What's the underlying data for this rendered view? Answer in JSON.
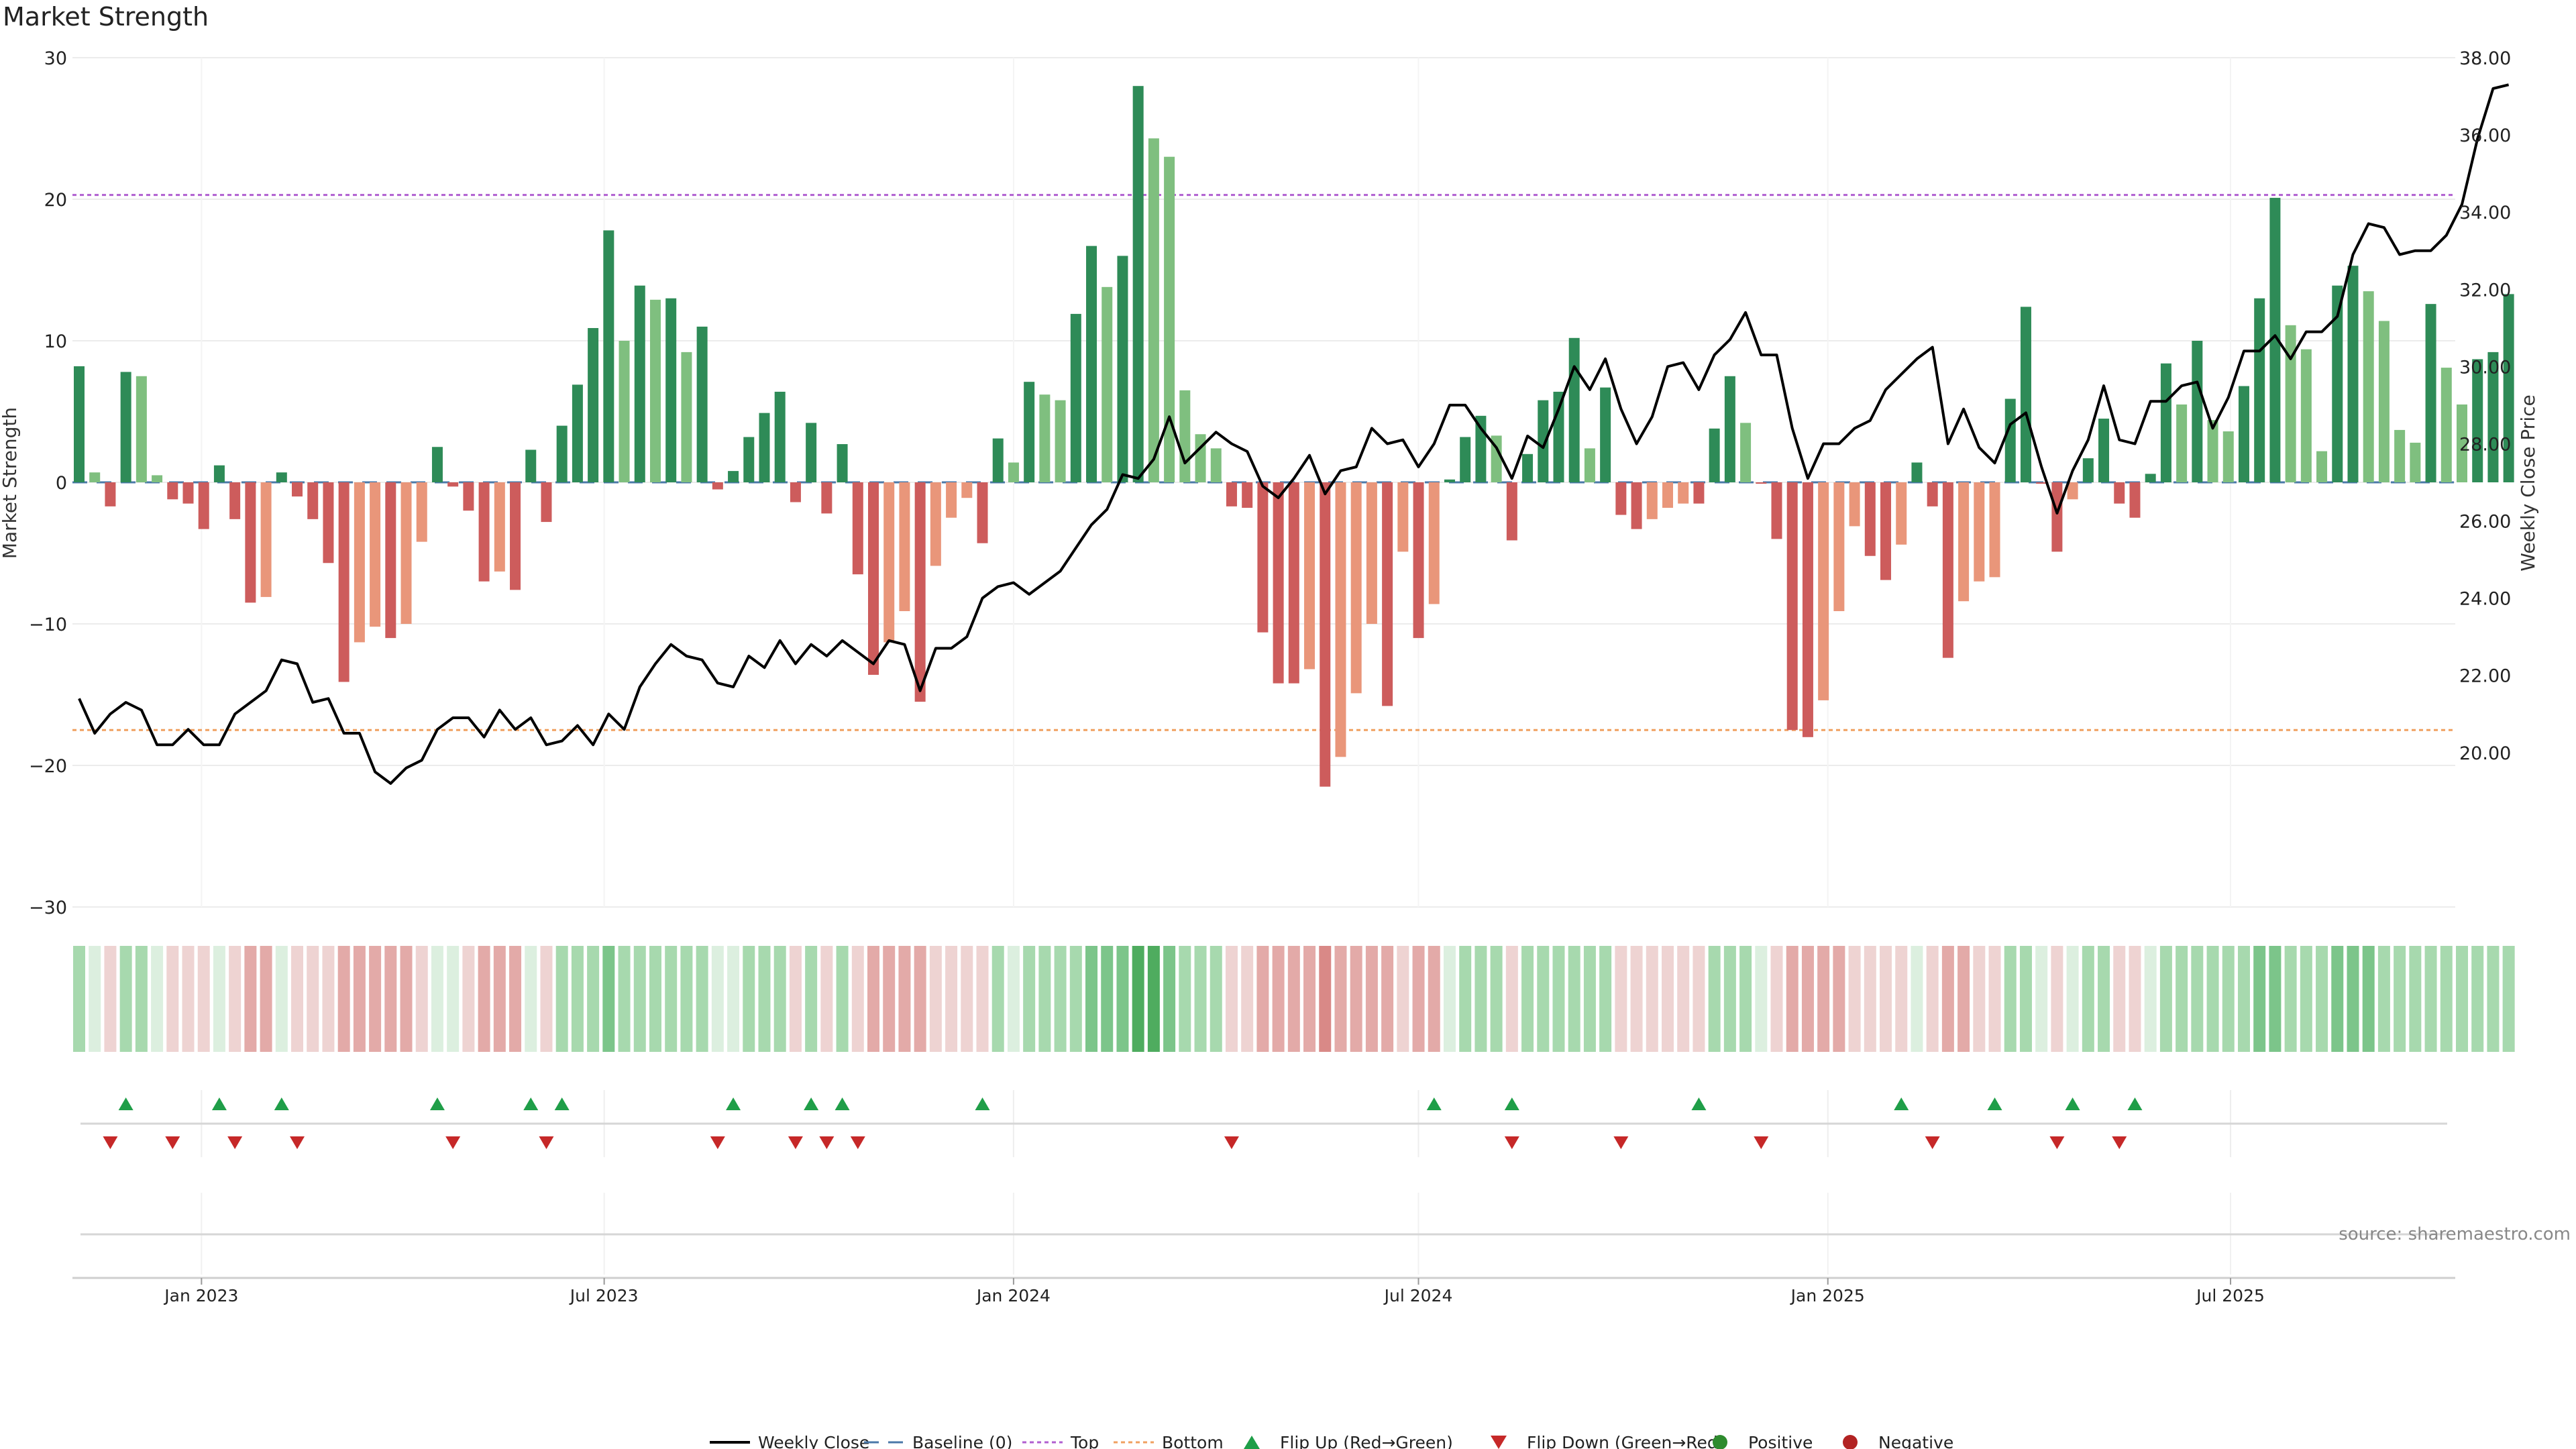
{
  "title": "Market Strength",
  "source": "source: sharemaestro.com",
  "colors": {
    "dark_green": "#2e8b57",
    "light_green": "#7fbf7f",
    "dark_red": "#cd5c5c",
    "light_red": "#e9967a",
    "close_line": "#000000",
    "top_line": "#b05fd0",
    "bottom_line": "#f0a060",
    "baseline": "#4a78a8",
    "up_marker": "#1f9e48",
    "down_marker": "#c62828",
    "positive": "#2e8b2e",
    "negative": "#b22222",
    "grid": "#ececec"
  },
  "chart_data": {
    "type": "bar",
    "title": "Market Strength",
    "ylabel": "Market Strength",
    "ylabel_right": "Weekly Close Price",
    "ylim": [
      -30,
      30
    ],
    "yticks": [
      -30,
      -20,
      -10,
      0,
      10,
      20,
      30
    ],
    "ylim_right": [
      16.0,
      38.0
    ],
    "yticks_right": [
      "20.00",
      "22.00",
      "24.00",
      "26.00",
      "28.00",
      "30.00",
      "32.00",
      "34.00",
      "36.00",
      "38.00"
    ],
    "top_level": 20.3,
    "bottom_level": -17.5,
    "x_range": [
      "2022-11-04",
      "2025-10-10"
    ],
    "x_ticks": [
      {
        "date": "2023-01-01",
        "label": "Jan 2023"
      },
      {
        "date": "2023-07-01",
        "label": "Jul 2023"
      },
      {
        "date": "2024-01-01",
        "label": "Jan 2024"
      },
      {
        "date": "2024-07-01",
        "label": "Jul 2024"
      },
      {
        "date": "2025-01-01",
        "label": "Jan 2025"
      },
      {
        "date": "2025-07-01",
        "label": "Jul 2025"
      }
    ],
    "first_week": "2022-11-04",
    "strength": [
      8.2,
      0.7,
      -1.7,
      7.8,
      7.5,
      0.5,
      -1.2,
      -1.5,
      -3.3,
      1.2,
      -2.6,
      -8.5,
      -8.1,
      0.7,
      -1.0,
      -2.6,
      -5.7,
      -14.1,
      -11.3,
      -10.2,
      -11.0,
      -10.0,
      -4.2,
      2.5,
      -0.3,
      -2.0,
      -7.0,
      -6.3,
      -7.6,
      2.3,
      -2.8,
      4.0,
      6.9,
      10.9,
      17.8,
      10.0,
      13.9,
      12.9,
      13.0,
      9.2,
      11.0,
      -0.5,
      0.8,
      3.2,
      4.9,
      6.4,
      -1.4,
      4.2,
      -2.2,
      2.7,
      -6.5,
      -13.6,
      -11.3,
      -9.1,
      -15.5,
      -5.9,
      -2.5,
      -1.1,
      -4.3,
      3.1,
      1.4,
      7.1,
      6.2,
      5.8,
      11.9,
      16.7,
      13.8,
      16.0,
      28.0,
      24.3,
      23.0,
      6.5,
      3.4,
      2.4,
      -1.7,
      -1.8,
      -10.6,
      -14.2,
      -14.2,
      -13.2,
      -21.5,
      -19.4,
      -14.9,
      -10.0,
      -15.8,
      -4.9,
      -11.0,
      -8.6,
      0.2,
      3.2,
      4.7,
      3.3,
      -4.1,
      2.0,
      5.8,
      6.4,
      10.2,
      2.4,
      6.7,
      -2.3,
      -3.3,
      -2.6,
      -1.8,
      -1.5,
      -1.5,
      3.8,
      7.5,
      4.2,
      -0.1,
      -4.0,
      -17.5,
      -18.0,
      -15.4,
      -9.1,
      -3.1,
      -5.2,
      -6.9,
      -4.4,
      1.4,
      -1.7,
      -12.4,
      -8.4,
      -7.0,
      -6.7,
      5.9,
      12.4,
      -0.1,
      -4.9,
      -1.2,
      1.7,
      4.5,
      -1.5,
      -2.5,
      0.6,
      8.4,
      5.5,
      10.0,
      4.4,
      3.6,
      6.8,
      13.0,
      20.1,
      11.1,
      9.4,
      2.2,
      13.9,
      15.3,
      13.5,
      11.4,
      3.7,
      2.8,
      12.6,
      8.1,
      5.5,
      8.7,
      9.2,
      13.3
    ],
    "close": [
      21.4,
      20.5,
      21.0,
      21.3,
      21.1,
      20.2,
      20.2,
      20.6,
      20.2,
      20.2,
      21.0,
      21.3,
      21.6,
      22.4,
      22.3,
      21.3,
      21.4,
      20.5,
      20.5,
      19.5,
      19.2,
      19.6,
      19.8,
      20.6,
      20.9,
      20.9,
      20.4,
      21.1,
      20.6,
      20.9,
      20.2,
      20.3,
      20.7,
      20.2,
      21.0,
      20.6,
      21.7,
      22.3,
      22.8,
      22.5,
      22.4,
      21.8,
      21.7,
      22.5,
      22.2,
      22.9,
      22.3,
      22.8,
      22.5,
      22.9,
      22.6,
      22.3,
      22.9,
      22.8,
      21.6,
      22.7,
      22.7,
      23.0,
      24.0,
      24.3,
      24.4,
      24.1,
      24.4,
      24.7,
      25.3,
      25.9,
      26.3,
      27.2,
      27.1,
      27.6,
      28.7,
      27.5,
      27.9,
      28.3,
      28.0,
      27.8,
      26.9,
      26.6,
      27.1,
      27.7,
      26.7,
      27.3,
      27.4,
      28.4,
      28.0,
      28.1,
      27.4,
      28.0,
      29.0,
      29.0,
      28.4,
      27.9,
      27.1,
      28.2,
      27.9,
      28.9,
      30.0,
      29.4,
      30.2,
      28.9,
      28.0,
      28.7,
      30.0,
      30.1,
      29.4,
      30.3,
      30.7,
      31.4,
      30.3,
      30.3,
      28.4,
      27.1,
      28.0,
      28.0,
      28.4,
      28.6,
      29.4,
      29.8,
      30.2,
      30.5,
      28.0,
      28.9,
      27.9,
      27.5,
      28.5,
      28.8,
      27.4,
      26.2,
      27.3,
      28.1,
      29.5,
      28.1,
      28.0,
      29.1,
      29.1,
      29.5,
      29.6,
      28.4,
      29.2,
      30.4,
      30.4,
      30.8,
      30.2,
      30.9,
      30.9,
      31.3,
      32.9,
      33.7,
      33.6,
      32.9,
      33.0,
      33.0,
      33.4,
      34.2,
      35.9,
      37.2,
      37.3
    ],
    "zone_colors": [
      1,
      0,
      -1,
      1,
      1,
      0,
      -1,
      -1,
      -1,
      0,
      -1,
      -2,
      -2,
      0,
      -1,
      -1,
      -1,
      -2,
      -2,
      -2,
      -2,
      -2,
      -1,
      0,
      0,
      -1,
      -2,
      -2,
      -2,
      0,
      -1,
      1,
      1,
      1,
      2,
      1,
      1,
      1,
      1,
      1,
      1,
      0,
      0,
      1,
      1,
      1,
      -1,
      1,
      -1,
      1,
      -1,
      -2,
      -2,
      -2,
      -2,
      -1,
      -1,
      -1,
      -1,
      1,
      0,
      1,
      1,
      1,
      1,
      2,
      2,
      2,
      3,
      3,
      2,
      1,
      1,
      1,
      -1,
      -1,
      -2,
      -2,
      -2,
      -2,
      -3,
      -2,
      -2,
      -2,
      -2,
      -1,
      -2,
      -2,
      0,
      1,
      1,
      1,
      -1,
      1,
      1,
      1,
      1,
      1,
      1,
      -1,
      -1,
      -1,
      -1,
      -1,
      -1,
      1,
      1,
      1,
      0,
      -1,
      -2,
      -2,
      -2,
      -2,
      -1,
      -1,
      -1,
      -1,
      0,
      -1,
      -2,
      -2,
      -1,
      -1,
      1,
      1,
      0,
      -1,
      0,
      1,
      1,
      -1,
      -1,
      0,
      1,
      1,
      1,
      1,
      1,
      1,
      2,
      2,
      1,
      1,
      1,
      2,
      2,
      2,
      1,
      1,
      1,
      1,
      1,
      1,
      1,
      1,
      1
    ],
    "flip_up_weeks": [
      3,
      9,
      13,
      23,
      29,
      31,
      42,
      47,
      49,
      58,
      87,
      92,
      104,
      117,
      123,
      128,
      132
    ],
    "flip_down_weeks": [
      2,
      6,
      10,
      14,
      24,
      30,
      41,
      46,
      48,
      50,
      74,
      92,
      99,
      108,
      119,
      127,
      131
    ]
  },
  "legend": [
    {
      "key": "weekly_close",
      "label": "Weekly Close"
    },
    {
      "key": "baseline",
      "label": "Baseline (0)"
    },
    {
      "key": "top",
      "label": "Top"
    },
    {
      "key": "bottom",
      "label": "Bottom"
    },
    {
      "key": "flip_up",
      "label": "Flip Up (Red→Green)"
    },
    {
      "key": "flip_down",
      "label": "Flip Down (Green→Red)"
    },
    {
      "key": "positive",
      "label": "Positive"
    },
    {
      "key": "negative",
      "label": "Negative"
    }
  ]
}
